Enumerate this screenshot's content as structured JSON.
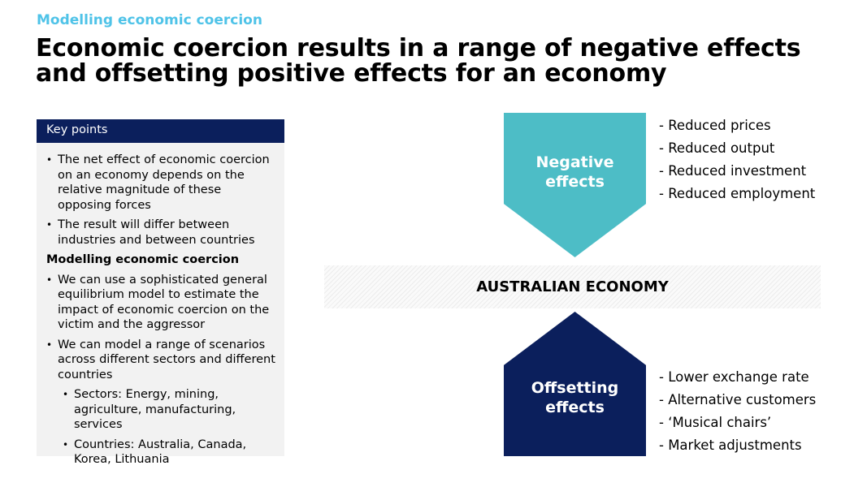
{
  "header": {
    "eyebrow": "Modelling economic coercion",
    "title": "Economic coercion results in a range of negative effects and offsetting positive effects for an economy"
  },
  "key_points": {
    "heading": "Key points",
    "bullets": [
      "The net effect of economic coercion on an economy depends on the relative magnitude of these opposing forces",
      "The result will differ between industries and between countries"
    ],
    "subheading": "Modelling economic coercion",
    "model_bullets": [
      "We can use a sophisticated general equilibrium model to estimate the impact of economic coercion on the victim and the aggressor",
      "We can model a range of scenarios across different sectors and different countries"
    ],
    "sub_bullets": [
      "Sectors: Energy, mining, agriculture, manufacturing, services",
      "Countries: Australia, Canada, Korea, Lithuania"
    ]
  },
  "diagram": {
    "negative_label": "Negative effects",
    "negative_items": [
      "- Reduced prices",
      "- Reduced output",
      "- Reduced investment",
      "- Reduced employment"
    ],
    "economy_label": "AUSTRALIAN ECONOMY",
    "offsetting_label": "Offsetting effects",
    "offsetting_items": [
      "- Lower exchange rate",
      "- Alternative customers",
      "- ‘Musical chairs’",
      "- Market adjustments"
    ],
    "colors": {
      "negative": "#4dbdc6",
      "offsetting": "#0b1f5c",
      "eyebrow": "#4fc3e8"
    }
  }
}
